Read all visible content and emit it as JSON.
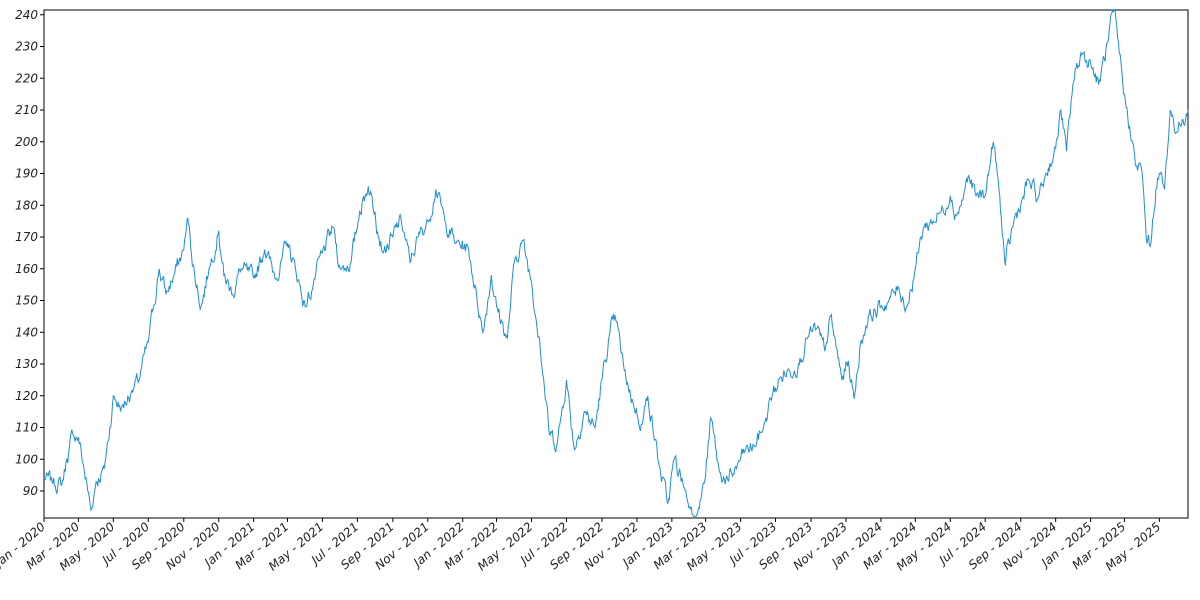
{
  "chart_data": {
    "type": "line",
    "title": "",
    "xlabel": "",
    "ylabel": "",
    "grid": false,
    "line_color": "#1f8fd0",
    "x_range": [
      "2020-01-01",
      "2025-06-20"
    ],
    "ylim": [
      81.5,
      241.5
    ],
    "y_ticks": [
      90,
      100,
      110,
      120,
      130,
      140,
      150,
      160,
      170,
      180,
      190,
      200,
      210,
      220,
      230,
      240
    ],
    "x_ticks": [
      {
        "date": "2020-01-01",
        "label": "Jan - 2020"
      },
      {
        "date": "2020-03-01",
        "label": "Mar - 2020"
      },
      {
        "date": "2020-05-01",
        "label": "May - 2020"
      },
      {
        "date": "2020-07-01",
        "label": "Jul - 2020"
      },
      {
        "date": "2020-09-01",
        "label": "Sep - 2020"
      },
      {
        "date": "2020-11-01",
        "label": "Nov - 2020"
      },
      {
        "date": "2021-01-01",
        "label": "Jan - 2021"
      },
      {
        "date": "2021-03-01",
        "label": "Mar - 2021"
      },
      {
        "date": "2021-05-01",
        "label": "May - 2021"
      },
      {
        "date": "2021-07-01",
        "label": "Jul - 2021"
      },
      {
        "date": "2021-09-01",
        "label": "Sep - 2021"
      },
      {
        "date": "2021-11-01",
        "label": "Nov - 2021"
      },
      {
        "date": "2022-01-01",
        "label": "Jan - 2022"
      },
      {
        "date": "2022-03-01",
        "label": "Mar - 2022"
      },
      {
        "date": "2022-05-01",
        "label": "May - 2022"
      },
      {
        "date": "2022-07-01",
        "label": "Jul - 2022"
      },
      {
        "date": "2022-09-01",
        "label": "Sep - 2022"
      },
      {
        "date": "2022-11-01",
        "label": "Nov - 2022"
      },
      {
        "date": "2023-01-01",
        "label": "Jan - 2023"
      },
      {
        "date": "2023-03-01",
        "label": "Mar - 2023"
      },
      {
        "date": "2023-05-01",
        "label": "May - 2023"
      },
      {
        "date": "2023-07-01",
        "label": "Jul - 2023"
      },
      {
        "date": "2023-09-01",
        "label": "Sep - 2023"
      },
      {
        "date": "2023-11-01",
        "label": "Nov - 2023"
      },
      {
        "date": "2024-01-01",
        "label": "Jan - 2024"
      },
      {
        "date": "2024-03-01",
        "label": "Mar - 2024"
      },
      {
        "date": "2024-05-01",
        "label": "May - 2024"
      },
      {
        "date": "2024-07-01",
        "label": "Jul - 2024"
      },
      {
        "date": "2024-09-01",
        "label": "Sep - 2024"
      },
      {
        "date": "2024-11-01",
        "label": "Nov - 2024"
      },
      {
        "date": "2025-01-01",
        "label": "Jan - 2025"
      },
      {
        "date": "2025-03-01",
        "label": "Mar - 2025"
      },
      {
        "date": "2025-05-01",
        "label": "May - 2025"
      }
    ],
    "series": [
      {
        "points": [
          [
            "2020-01-01",
            94
          ],
          [
            "2020-01-15",
            93
          ],
          [
            "2020-02-01",
            92
          ],
          [
            "2020-02-10",
            100
          ],
          [
            "2020-02-20",
            108
          ],
          [
            "2020-03-01",
            107
          ],
          [
            "2020-03-10",
            98
          ],
          [
            "2020-03-23",
            84
          ],
          [
            "2020-04-01",
            93
          ],
          [
            "2020-04-15",
            97
          ],
          [
            "2020-04-25",
            110
          ],
          [
            "2020-05-01",
            120
          ],
          [
            "2020-05-15",
            116
          ],
          [
            "2020-06-01",
            121
          ],
          [
            "2020-06-15",
            125
          ],
          [
            "2020-07-01",
            137
          ],
          [
            "2020-07-10",
            148
          ],
          [
            "2020-07-20",
            160
          ],
          [
            "2020-08-01",
            152
          ],
          [
            "2020-08-15",
            158
          ],
          [
            "2020-09-01",
            166
          ],
          [
            "2020-09-08",
            176
          ],
          [
            "2020-09-20",
            158
          ],
          [
            "2020-10-01",
            148
          ],
          [
            "2020-10-15",
            160
          ],
          [
            "2020-11-01",
            172
          ],
          [
            "2020-11-10",
            158
          ],
          [
            "2020-11-25",
            152
          ],
          [
            "2020-12-10",
            160
          ],
          [
            "2021-01-01",
            157
          ],
          [
            "2021-01-20",
            166
          ],
          [
            "2021-02-10",
            157
          ],
          [
            "2021-03-01",
            168
          ],
          [
            "2021-03-15",
            160
          ],
          [
            "2021-04-01",
            148
          ],
          [
            "2021-04-15",
            155
          ],
          [
            "2021-05-01",
            165
          ],
          [
            "2021-05-20",
            173
          ],
          [
            "2021-06-01",
            160
          ],
          [
            "2021-06-20",
            162
          ],
          [
            "2021-07-05",
            178
          ],
          [
            "2021-07-20",
            186
          ],
          [
            "2021-08-01",
            178
          ],
          [
            "2021-08-15",
            165
          ],
          [
            "2021-09-01",
            170
          ],
          [
            "2021-09-15",
            176
          ],
          [
            "2021-10-01",
            162
          ],
          [
            "2021-10-15",
            170
          ],
          [
            "2021-11-01",
            175
          ],
          [
            "2021-11-15",
            185
          ],
          [
            "2021-12-01",
            175
          ],
          [
            "2021-12-20",
            168
          ],
          [
            "2022-01-10",
            167
          ],
          [
            "2022-01-25",
            152
          ],
          [
            "2022-02-05",
            140
          ],
          [
            "2022-02-20",
            158
          ],
          [
            "2022-03-01",
            148
          ],
          [
            "2022-03-20",
            138
          ],
          [
            "2022-04-01",
            162
          ],
          [
            "2022-04-15",
            169
          ],
          [
            "2022-05-01",
            156
          ],
          [
            "2022-05-15",
            138
          ],
          [
            "2022-06-01",
            108
          ],
          [
            "2022-06-15",
            105
          ],
          [
            "2022-07-01",
            125
          ],
          [
            "2022-07-15",
            103
          ],
          [
            "2022-08-01",
            115
          ],
          [
            "2022-08-20",
            110
          ],
          [
            "2022-09-01",
            125
          ],
          [
            "2022-09-15",
            140
          ],
          [
            "2022-09-25",
            144
          ],
          [
            "2022-10-10",
            128
          ],
          [
            "2022-10-25",
            118
          ],
          [
            "2022-11-10",
            111
          ],
          [
            "2022-11-20",
            120
          ],
          [
            "2022-12-10",
            98
          ],
          [
            "2022-12-25",
            86
          ],
          [
            "2023-01-05",
            100
          ],
          [
            "2023-01-20",
            93
          ],
          [
            "2023-02-01",
            85
          ],
          [
            "2023-02-15",
            83
          ],
          [
            "2023-03-01",
            95
          ],
          [
            "2023-03-10",
            113
          ],
          [
            "2023-03-25",
            96
          ],
          [
            "2023-04-10",
            93
          ],
          [
            "2023-04-25",
            98
          ],
          [
            "2023-05-10",
            103
          ],
          [
            "2023-05-25",
            104
          ],
          [
            "2023-06-10",
            110
          ],
          [
            "2023-06-25",
            120
          ],
          [
            "2023-07-10",
            126
          ],
          [
            "2023-07-25",
            128
          ],
          [
            "2023-08-10",
            130
          ],
          [
            "2023-08-25",
            138
          ],
          [
            "2023-09-10",
            141
          ],
          [
            "2023-09-25",
            134
          ],
          [
            "2023-10-05",
            145
          ],
          [
            "2023-10-15",
            135
          ],
          [
            "2023-10-25",
            125
          ],
          [
            "2023-11-05",
            131
          ],
          [
            "2023-11-15",
            119
          ],
          [
            "2023-11-25",
            135
          ],
          [
            "2023-12-10",
            145
          ],
          [
            "2024-01-01",
            148
          ],
          [
            "2024-01-15",
            150
          ],
          [
            "2024-02-01",
            154
          ],
          [
            "2024-02-15",
            148
          ],
          [
            "2024-03-01",
            160
          ],
          [
            "2024-03-15",
            173
          ],
          [
            "2024-04-01",
            175
          ],
          [
            "2024-04-15",
            178
          ],
          [
            "2024-05-01",
            183
          ],
          [
            "2024-05-10",
            177
          ],
          [
            "2024-05-20",
            180
          ],
          [
            "2024-06-01",
            189
          ],
          [
            "2024-06-15",
            183
          ],
          [
            "2024-07-01",
            183
          ],
          [
            "2024-07-15",
            200
          ],
          [
            "2024-07-25",
            185
          ],
          [
            "2024-08-05",
            161
          ],
          [
            "2024-08-20",
            175
          ],
          [
            "2024-09-01",
            180
          ],
          [
            "2024-09-15",
            188
          ],
          [
            "2024-10-01",
            182
          ],
          [
            "2024-10-15",
            190
          ],
          [
            "2024-11-01",
            198
          ],
          [
            "2024-11-10",
            210
          ],
          [
            "2024-11-20",
            197
          ],
          [
            "2024-12-01",
            218
          ],
          [
            "2024-12-15",
            228
          ],
          [
            "2025-01-01",
            225
          ],
          [
            "2025-01-15",
            218
          ],
          [
            "2025-02-01",
            232
          ],
          [
            "2025-02-10",
            241
          ],
          [
            "2025-02-20",
            228
          ],
          [
            "2025-03-01",
            215
          ],
          [
            "2025-03-10",
            205
          ],
          [
            "2025-03-20",
            193
          ],
          [
            "2025-04-01",
            190
          ],
          [
            "2025-04-08",
            170
          ],
          [
            "2025-04-15",
            167
          ],
          [
            "2025-04-25",
            185
          ],
          [
            "2025-05-01",
            190
          ],
          [
            "2025-05-10",
            185
          ],
          [
            "2025-05-20",
            210
          ],
          [
            "2025-06-01",
            203
          ],
          [
            "2025-06-10",
            207
          ],
          [
            "2025-06-20",
            210
          ]
        ]
      }
    ]
  }
}
